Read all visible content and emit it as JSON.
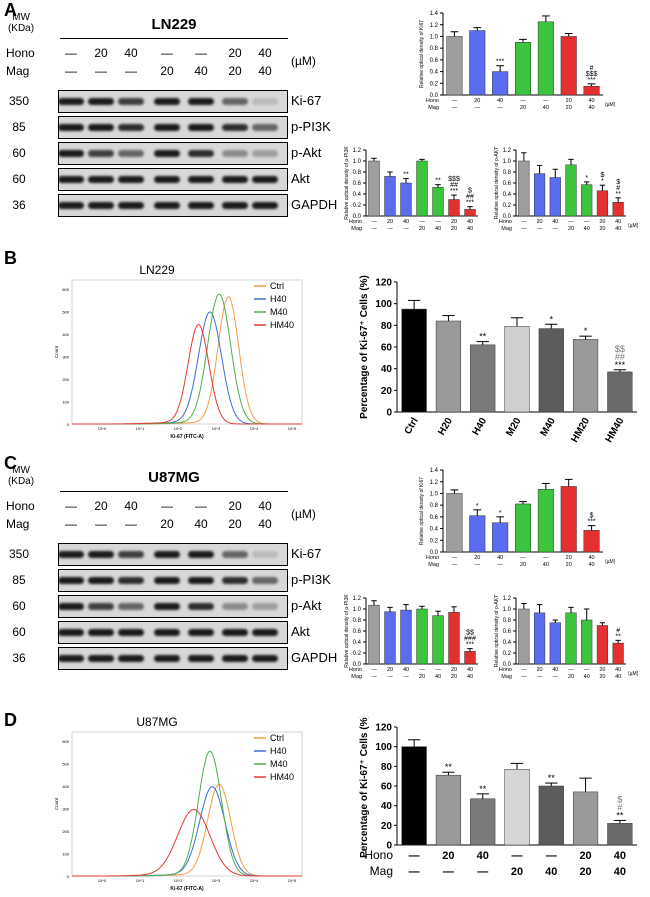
{
  "panels": [
    "A",
    "B",
    "C",
    "D"
  ],
  "blot_header": {
    "mw_label": "MW",
    "kda_label": "(KDa)",
    "hono": "Hono",
    "mag": "Mag",
    "unit": "(µM)"
  },
  "blots": [
    {
      "title": "LN229",
      "hono_row": [
        "—",
        "20",
        "40",
        "—",
        "—",
        "20",
        "40"
      ],
      "mag_row": [
        "—",
        "—",
        "—",
        "20",
        "40",
        "20",
        "40"
      ],
      "rows": [
        {
          "mw": "350",
          "antibody": "Ki-67"
        },
        {
          "mw": "85",
          "antibody": "p-PI3K"
        },
        {
          "mw": "60",
          "antibody": "p-Akt"
        },
        {
          "mw": "60",
          "antibody": "Akt"
        },
        {
          "mw": "36",
          "antibody": "GAPDH"
        }
      ]
    },
    {
      "title": "U87MG",
      "hono_row": [
        "—",
        "20",
        "40",
        "—",
        "—",
        "20",
        "40"
      ],
      "mag_row": [
        "—",
        "—",
        "—",
        "20",
        "40",
        "20",
        "40"
      ],
      "rows": [
        {
          "mw": "350",
          "antibody": "Ki-67"
        },
        {
          "mw": "85",
          "antibody": "p-PI3K"
        },
        {
          "mw": "60",
          "antibody": "p-Akt"
        },
        {
          "mw": "60",
          "antibody": "Akt"
        },
        {
          "mw": "36",
          "antibody": "GAPDH"
        }
      ]
    }
  ],
  "flow": [
    {
      "title": "LN229",
      "xlabel": "Ki-67 (FITC-A)",
      "ylabel": "Count",
      "legend": [
        {
          "name": "Ctrl",
          "color": "#f29b4a"
        },
        {
          "name": "H40",
          "color": "#3a6fd8"
        },
        {
          "name": "M40",
          "color": "#4caf50"
        },
        {
          "name": "HM40",
          "color": "#e53935"
        }
      ],
      "xticks": [
        "10^0",
        "10^1",
        "10^2",
        "10^3",
        "10^4",
        "10^5"
      ],
      "yticks": [
        "0",
        "100",
        "200",
        "300",
        "400",
        "500",
        "600"
      ]
    },
    {
      "title": "U87MG",
      "xlabel": "Ki-67 (FITC-A)",
      "ylabel": "Count",
      "legend": [
        {
          "name": "Ctrl",
          "color": "#f29b4a"
        },
        {
          "name": "H40",
          "color": "#3a6fd8"
        },
        {
          "name": "M40",
          "color": "#4caf50"
        },
        {
          "name": "HM40",
          "color": "#e53935"
        }
      ],
      "xticks": [
        "10^0",
        "10^1",
        "10^2",
        "10^3",
        "10^4",
        "10^5"
      ],
      "yticks": [
        "0",
        "100",
        "200",
        "300",
        "400",
        "500",
        "600"
      ]
    }
  ],
  "chart_data": [
    {
      "id": "A-ki67",
      "type": "bar",
      "ylabel": "Relative optical density of Ki67",
      "ylim": [
        0,
        1.4
      ],
      "yticks": [
        "0.0",
        "0.2",
        "0.4",
        "0.6",
        "0.8",
        "1.0",
        "1.2",
        "1.4"
      ],
      "categories": [
        "Ctrl",
        "H20",
        "H40",
        "M20",
        "M40",
        "HM20",
        "HM40"
      ],
      "values": [
        1.0,
        1.1,
        0.4,
        0.9,
        1.25,
        1.0,
        0.15
      ],
      "errors": [
        0.08,
        0.05,
        0.1,
        0.05,
        0.1,
        0.05,
        0.04
      ],
      "colors": [
        "#9e9e9e",
        "#5b6cf0",
        "#5b6cf0",
        "#3cc43c",
        "#3cc43c",
        "#e53030",
        "#e53030"
      ],
      "annotations": [
        "",
        "",
        "***",
        "",
        "",
        "",
        "#\n$$$\n***"
      ],
      "hono": [
        "—",
        "20",
        "40",
        "—",
        "—",
        "20",
        "40"
      ],
      "mag": [
        "—",
        "—",
        "—",
        "20",
        "40",
        "20",
        "40"
      ],
      "unit": "(µM)"
    },
    {
      "id": "A-pi3k",
      "type": "bar",
      "ylabel": "Relative optical density of p-PI3K",
      "ylim": [
        0,
        1.2
      ],
      "yticks": [
        "0.0",
        "0.2",
        "0.4",
        "0.6",
        "0.8",
        "1.0",
        "1.2"
      ],
      "categories": [
        "Ctrl",
        "H20",
        "H40",
        "M20",
        "M40",
        "HM20",
        "HM40"
      ],
      "values": [
        1.0,
        0.72,
        0.6,
        1.0,
        0.52,
        0.3,
        0.12
      ],
      "errors": [
        0.05,
        0.08,
        0.08,
        0.03,
        0.05,
        0.08,
        0.05
      ],
      "colors": [
        "#9e9e9e",
        "#5b6cf0",
        "#5b6cf0",
        "#3cc43c",
        "#3cc43c",
        "#e53030",
        "#e53030"
      ],
      "annotations": [
        "",
        "",
        "**",
        "",
        "**",
        "$$$\n##\n***",
        "$\n##\n***"
      ],
      "hono": [
        "—",
        "20",
        "40",
        "—",
        "—",
        "20",
        "40"
      ],
      "mag": [
        "—",
        "—",
        "—",
        "20",
        "40",
        "20",
        "40"
      ],
      "unit": ""
    },
    {
      "id": "A-pakt",
      "type": "bar",
      "ylabel": "Relative optical density of p-AKT",
      "ylim": [
        0,
        1.2
      ],
      "yticks": [
        "0.0",
        "0.2",
        "0.4",
        "0.6",
        "0.8",
        "1.0",
        "1.2"
      ],
      "categories": [
        "Ctrl",
        "H20",
        "H40",
        "M20",
        "M40",
        "HM20",
        "HM40"
      ],
      "values": [
        1.0,
        0.77,
        0.7,
        0.93,
        0.57,
        0.46,
        0.25
      ],
      "errors": [
        0.15,
        0.15,
        0.15,
        0.1,
        0.05,
        0.1,
        0.08
      ],
      "colors": [
        "#9e9e9e",
        "#5b6cf0",
        "#5b6cf0",
        "#3cc43c",
        "#3cc43c",
        "#e53030",
        "#e53030"
      ],
      "annotations": [
        "",
        "",
        "",
        "",
        "*",
        "$\n*",
        "$\n#\n**"
      ],
      "hono": [
        "—",
        "20",
        "40",
        "—",
        "—",
        "20",
        "40"
      ],
      "mag": [
        "—",
        "—",
        "—",
        "20",
        "40",
        "20",
        "40"
      ],
      "unit": "(µM)"
    },
    {
      "id": "B-percent",
      "type": "bar",
      "ylabel": "Percentage of Ki-67⁺ Cells (%)",
      "ylim": [
        0,
        120
      ],
      "yticks": [
        "0",
        "20",
        "40",
        "60",
        "80",
        "100",
        "120"
      ],
      "categories": [
        "Ctrl",
        "H20",
        "H40",
        "M20",
        "M40",
        "HM20",
        "HM40"
      ],
      "values": [
        95,
        84,
        62,
        79,
        77,
        67,
        37
      ],
      "errors": [
        8,
        5,
        3,
        8,
        4,
        3,
        2
      ],
      "colors": [
        "#000000",
        "#9a9a9a",
        "#7a7a7a",
        "#cfcfcf",
        "#5c5c5c",
        "#9a9a9a",
        "#6a6a6a"
      ],
      "annotations": [
        "",
        "",
        "**",
        "",
        "*",
        "*",
        "$$\n##\n***"
      ]
    },
    {
      "id": "C-ki67",
      "type": "bar",
      "ylabel": "Relative optical density of Ki67",
      "ylim": [
        0,
        1.4
      ],
      "yticks": [
        "0.0",
        "0.2",
        "0.4",
        "0.6",
        "0.8",
        "1.0",
        "1.2",
        "1.4"
      ],
      "categories": [
        "Ctrl",
        "H20",
        "H40",
        "M20",
        "M40",
        "HM20",
        "HM40"
      ],
      "values": [
        1.0,
        0.62,
        0.5,
        0.82,
        1.07,
        1.12,
        0.37
      ],
      "errors": [
        0.06,
        0.1,
        0.1,
        0.04,
        0.1,
        0.12,
        0.08
      ],
      "colors": [
        "#9e9e9e",
        "#5b6cf0",
        "#5b6cf0",
        "#3cc43c",
        "#3cc43c",
        "#e53030",
        "#e53030"
      ],
      "annotations": [
        "",
        "*",
        "*",
        "",
        "",
        "",
        "$\n***"
      ],
      "hono": [
        "—",
        "20",
        "40",
        "—",
        "—",
        "20",
        "40"
      ],
      "mag": [
        "—",
        "—",
        "—",
        "20",
        "40",
        "20",
        "40"
      ],
      "unit": "(µM)"
    },
    {
      "id": "C-pi3k",
      "type": "bar",
      "ylabel": "Relative optical density of p-PI3K",
      "ylim": [
        0,
        1.2
      ],
      "yticks": [
        "0.0",
        "0.2",
        "0.4",
        "0.6",
        "0.8",
        "1.0",
        "1.2"
      ],
      "categories": [
        "Ctrl",
        "H20",
        "H40",
        "M20",
        "M40",
        "HM20",
        "HM40"
      ],
      "values": [
        1.07,
        0.95,
        0.98,
        1.0,
        0.88,
        0.94,
        0.23
      ],
      "errors": [
        0.08,
        0.08,
        0.1,
        0.05,
        0.08,
        0.1,
        0.05
      ],
      "colors": [
        "#9e9e9e",
        "#5b6cf0",
        "#5b6cf0",
        "#3cc43c",
        "#3cc43c",
        "#e53030",
        "#e53030"
      ],
      "annotations": [
        "",
        "",
        "",
        "",
        "",
        "",
        "$$\n###\n***"
      ],
      "hono": [
        "—",
        "20",
        "40",
        "—",
        "—",
        "20",
        "40"
      ],
      "mag": [
        "—",
        "—",
        "—",
        "20",
        "40",
        "20",
        "40"
      ],
      "unit": ""
    },
    {
      "id": "C-pakt",
      "type": "bar",
      "ylabel": "Relative optical density of p-AKT",
      "ylim": [
        0,
        1.2
      ],
      "yticks": [
        "0.0",
        "0.2",
        "0.4",
        "0.6",
        "0.8",
        "1.0",
        "1.2"
      ],
      "categories": [
        "Ctrl",
        "H20",
        "H40",
        "M20",
        "M40",
        "HM20",
        "HM40"
      ],
      "values": [
        1.0,
        0.93,
        0.75,
        0.93,
        0.8,
        0.7,
        0.38
      ],
      "errors": [
        0.1,
        0.15,
        0.05,
        0.1,
        0.2,
        0.05,
        0.05
      ],
      "colors": [
        "#9e9e9e",
        "#5b6cf0",
        "#5b6cf0",
        "#3cc43c",
        "#3cc43c",
        "#e53030",
        "#e53030"
      ],
      "annotations": [
        "",
        "",
        "",
        "",
        "",
        "",
        "#\n**"
      ],
      "hono": [
        "—",
        "20",
        "40",
        "—",
        "—",
        "20",
        "40"
      ],
      "mag": [
        "—",
        "—",
        "—",
        "20",
        "40",
        "20",
        "40"
      ],
      "unit": "(µM)"
    },
    {
      "id": "D-percent",
      "type": "bar",
      "ylabel": "Percentage of Ki-67⁺ Cells (%)",
      "ylim": [
        0,
        120
      ],
      "yticks": [
        "0",
        "20",
        "40",
        "60",
        "80",
        "100",
        "120"
      ],
      "categories": [
        "Ctrl",
        "H20",
        "H40",
        "M20",
        "M40",
        "HM20",
        "HM40"
      ],
      "values": [
        100,
        71,
        47,
        77,
        60,
        54,
        22
      ],
      "errors": [
        7,
        3,
        5,
        6,
        3,
        14,
        3
      ],
      "colors": [
        "#000000",
        "#9a9a9a",
        "#7a7a7a",
        "#d6d6d6",
        "#5c5c5c",
        "#9a9a9a",
        "#6a6a6a"
      ],
      "annotations": [
        "",
        "**",
        "**",
        "",
        "**",
        "",
        "$\n#\n**"
      ],
      "hono": [
        "—",
        "20",
        "40",
        "—",
        "—",
        "20",
        "40"
      ],
      "mag": [
        "—",
        "—",
        "—",
        "20",
        "40",
        "20",
        "40"
      ],
      "unit": "",
      "row_label_hono": "Hono",
      "row_label_mag": "Mag"
    }
  ]
}
